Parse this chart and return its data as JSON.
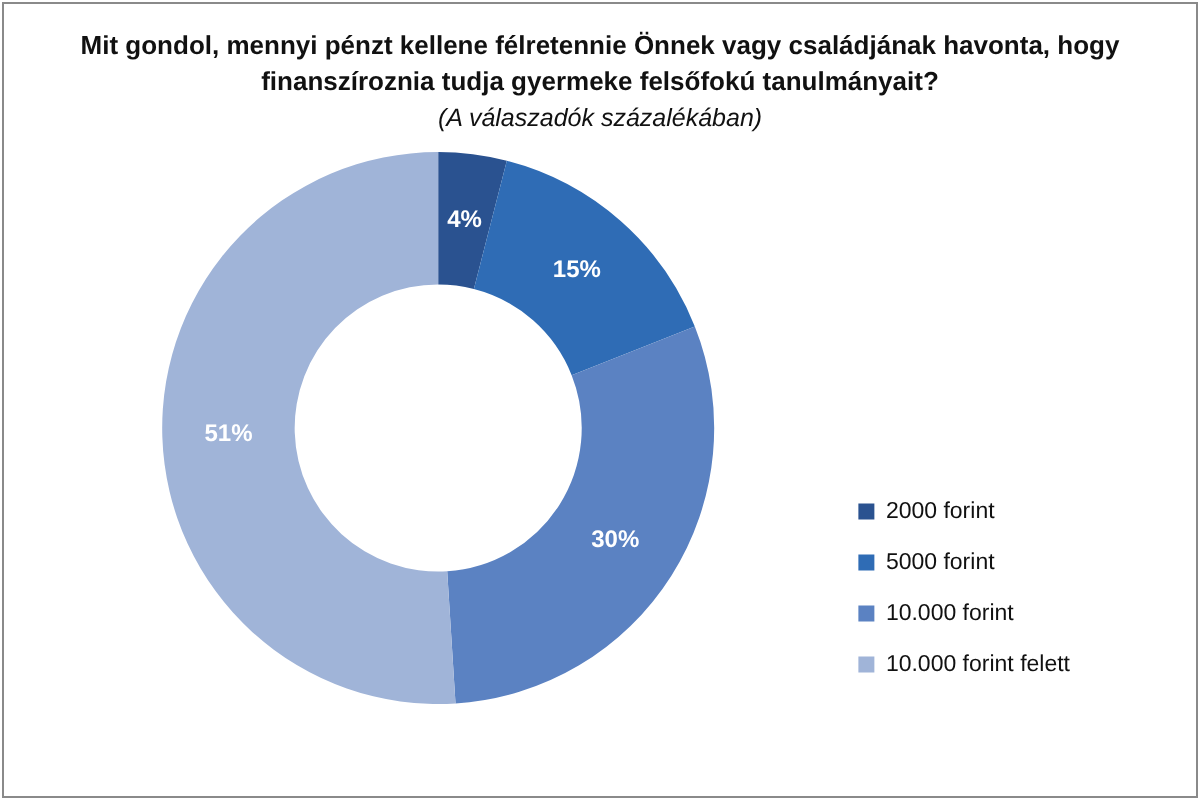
{
  "chart_data": {
    "type": "donut",
    "title": "Mit gondol, mennyi pénzt kellene félretennie Önnek vagy családjának havonta, hogy finanszíroznia tudja gyermeke felsőfokú tanulmányait?",
    "subtitle": "(A válaszadók százalékában)",
    "categories": [
      "2000 forint",
      "5000 forint",
      "10.000 forint",
      "10.000 forint felett"
    ],
    "values": [
      4,
      15,
      30,
      51
    ],
    "colors": [
      "#2a5290",
      "#2f6cb5",
      "#5b82c2",
      "#a0b4d8"
    ],
    "value_labels": [
      "4%",
      "15%",
      "30%",
      "51%"
    ],
    "legend": "right"
  }
}
